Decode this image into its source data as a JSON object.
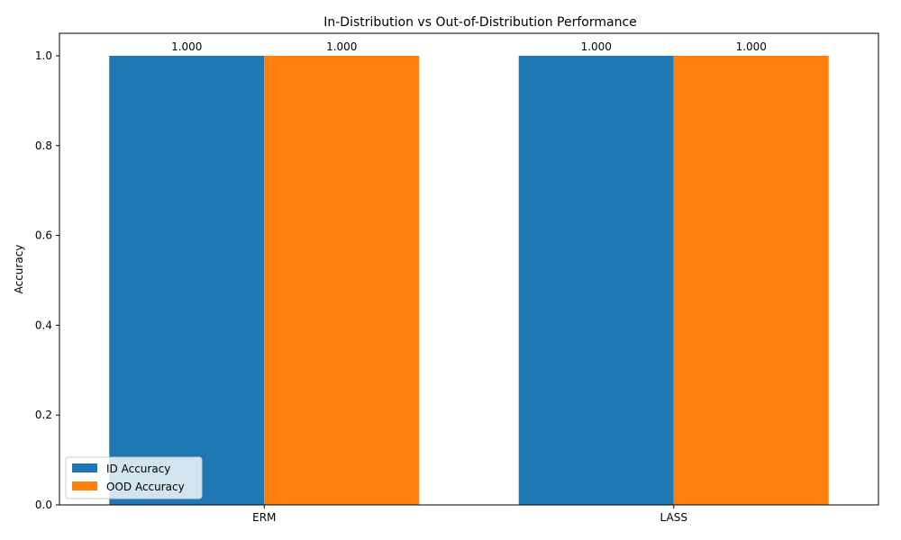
{
  "chart_data": {
    "type": "bar",
    "title": "In-Distribution vs Out-of-Distribution Performance",
    "xlabel": "",
    "ylabel": "Accuracy",
    "categories": [
      "ERM",
      "LASS"
    ],
    "series": [
      {
        "name": "ID Accuracy",
        "values": [
          1.0,
          1.0
        ],
        "color": "#1f77b4",
        "labels": [
          "1.000",
          "1.000"
        ]
      },
      {
        "name": "OOD Accuracy",
        "values": [
          1.0,
          1.0
        ],
        "color": "#ff7f0e",
        "labels": [
          "1.000",
          "1.000"
        ]
      }
    ],
    "ylim": [
      0,
      1.05
    ],
    "yticks": [
      0.0,
      0.2,
      0.4,
      0.6,
      0.8,
      1.0
    ],
    "ytick_labels": [
      "0.0",
      "0.2",
      "0.4",
      "0.6",
      "0.8",
      "1.0"
    ],
    "grid": false,
    "legend_position": "lower-left"
  }
}
